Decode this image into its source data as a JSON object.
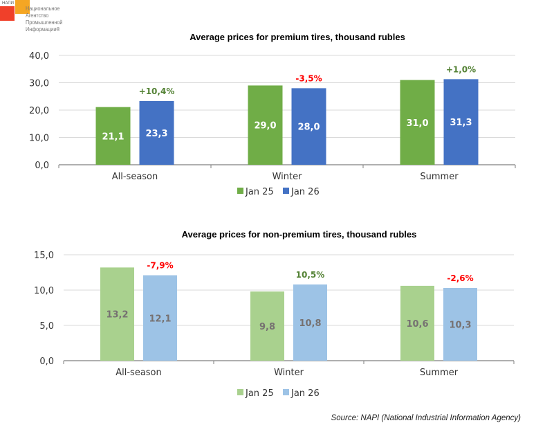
{
  "logo": {
    "abbr": "НАПИ",
    "lines": [
      "Национальное",
      "Агентство",
      "Промышленной",
      "Информации®"
    ]
  },
  "source": "Source: NAPI (National Industrial Information Agency)",
  "chart_data": [
    {
      "type": "bar",
      "title": "Average prices for premium tires, thousand rubles",
      "categories": [
        "All-season",
        "Winter",
        "Summer"
      ],
      "series": [
        {
          "name": "Jan 25",
          "values": [
            21.1,
            29.0,
            31.0
          ],
          "labels": [
            "21,1",
            "29,0",
            "31,0"
          ],
          "color": "#70ad47",
          "label_color": "#ffffff"
        },
        {
          "name": "Jan 26",
          "values": [
            23.3,
            28.0,
            31.3
          ],
          "labels": [
            "23,3",
            "28,0",
            "31,3"
          ],
          "color": "#4472c4",
          "label_color": "#ffffff"
        }
      ],
      "changes": [
        {
          "text": "+10,4%",
          "color": "#548235"
        },
        {
          "text": "-3,5%",
          "color": "#ff0000"
        },
        {
          "text": "+1,0%",
          "color": "#548235"
        }
      ],
      "ylim": [
        0,
        40
      ],
      "yticks": [
        0,
        10,
        20,
        30,
        40
      ],
      "ytick_labels": [
        "0,0",
        "10,0",
        "20,0",
        "30,0",
        "40,0"
      ],
      "grid": true,
      "legend": "bottom"
    },
    {
      "type": "bar",
      "title": "Average prices for non-premium tires, thousand rubles",
      "categories": [
        "All-season",
        "Winter",
        "Summer"
      ],
      "series": [
        {
          "name": "Jan 25",
          "values": [
            13.2,
            9.8,
            10.6
          ],
          "labels": [
            "13,2",
            "9,8",
            "10,6"
          ],
          "color": "#a9d18e",
          "label_color": "#767171"
        },
        {
          "name": "Jan 26",
          "values": [
            12.1,
            10.8,
            10.3
          ],
          "labels": [
            "12,1",
            "10,8",
            "10,3"
          ],
          "color": "#9dc3e6",
          "label_color": "#767171"
        }
      ],
      "changes": [
        {
          "text": "-7,9%",
          "color": "#ff0000"
        },
        {
          "text": "10,5%",
          "color": "#548235"
        },
        {
          "text": "-2,6%",
          "color": "#ff0000"
        }
      ],
      "ylim": [
        0,
        15
      ],
      "yticks": [
        0,
        5,
        10,
        15
      ],
      "ytick_labels": [
        "0,0",
        "5,0",
        "10,0",
        "15,0"
      ],
      "grid": true,
      "legend": "bottom"
    }
  ]
}
